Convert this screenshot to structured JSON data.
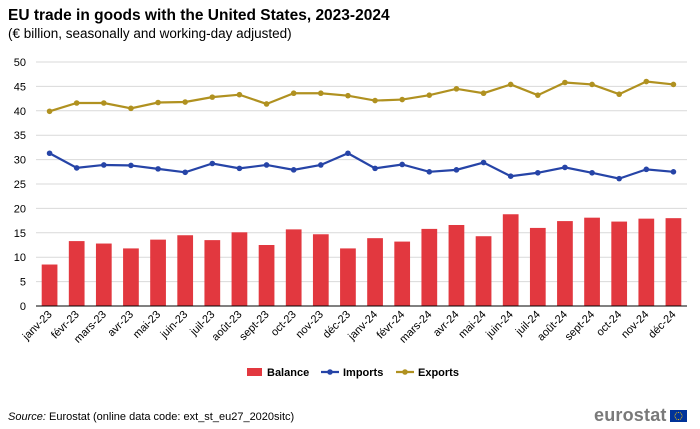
{
  "title": "EU trade in goods with the United States, 2023-2024",
  "subtitle": "(€ billion, seasonally and working-day adjusted)",
  "source_label": "Source:",
  "source_text": "Eurostat (online data code: ext_st_eu27_2020sitc)",
  "logo_text": "eurostat",
  "colors": {
    "balance": "#e2383f",
    "imports": "#2644a7",
    "exports": "#b09120",
    "grid": "#d9d9d9"
  },
  "chart_data": {
    "type": "bar",
    "categories": [
      "janv-23",
      "févr-23",
      "mars-23",
      "avr-23",
      "mai-23",
      "juin-23",
      "juil-23",
      "août-23",
      "sept-23",
      "oct-23",
      "nov-23",
      "déc-23",
      "janv-24",
      "févr-24",
      "mars-24",
      "avr-24",
      "mai-24",
      "juin-24",
      "juil-24",
      "août-24",
      "sept-24",
      "oct-24",
      "nov-24",
      "déc-24"
    ],
    "yticks": [
      0,
      5,
      10,
      15,
      20,
      25,
      30,
      35,
      40,
      45,
      50
    ],
    "ylim": [
      0,
      50
    ],
    "grid": true,
    "legend_position": "bottom",
    "series": [
      {
        "name": "Balance",
        "type": "bar",
        "values": [
          8.5,
          13.3,
          12.8,
          11.8,
          13.6,
          14.5,
          13.5,
          15.1,
          12.5,
          15.7,
          14.7,
          11.8,
          13.9,
          13.2,
          15.8,
          16.6,
          14.3,
          18.8,
          16.0,
          17.4,
          18.1,
          17.3,
          17.9,
          18.0
        ]
      },
      {
        "name": "Imports",
        "type": "line",
        "values": [
          31.3,
          28.3,
          28.9,
          28.8,
          28.1,
          27.4,
          29.2,
          28.2,
          28.9,
          27.9,
          28.9,
          31.3,
          28.2,
          29.0,
          27.5,
          27.9,
          29.4,
          26.6,
          27.3,
          28.4,
          27.3,
          26.1,
          28.0,
          27.5
        ]
      },
      {
        "name": "Exports",
        "type": "line",
        "values": [
          39.9,
          41.6,
          41.6,
          40.5,
          41.7,
          41.8,
          42.8,
          43.3,
          41.4,
          43.6,
          43.6,
          43.1,
          42.1,
          42.3,
          43.2,
          44.5,
          43.6,
          45.4,
          43.2,
          45.8,
          45.4,
          43.4,
          46.0,
          45.4
        ]
      }
    ]
  }
}
